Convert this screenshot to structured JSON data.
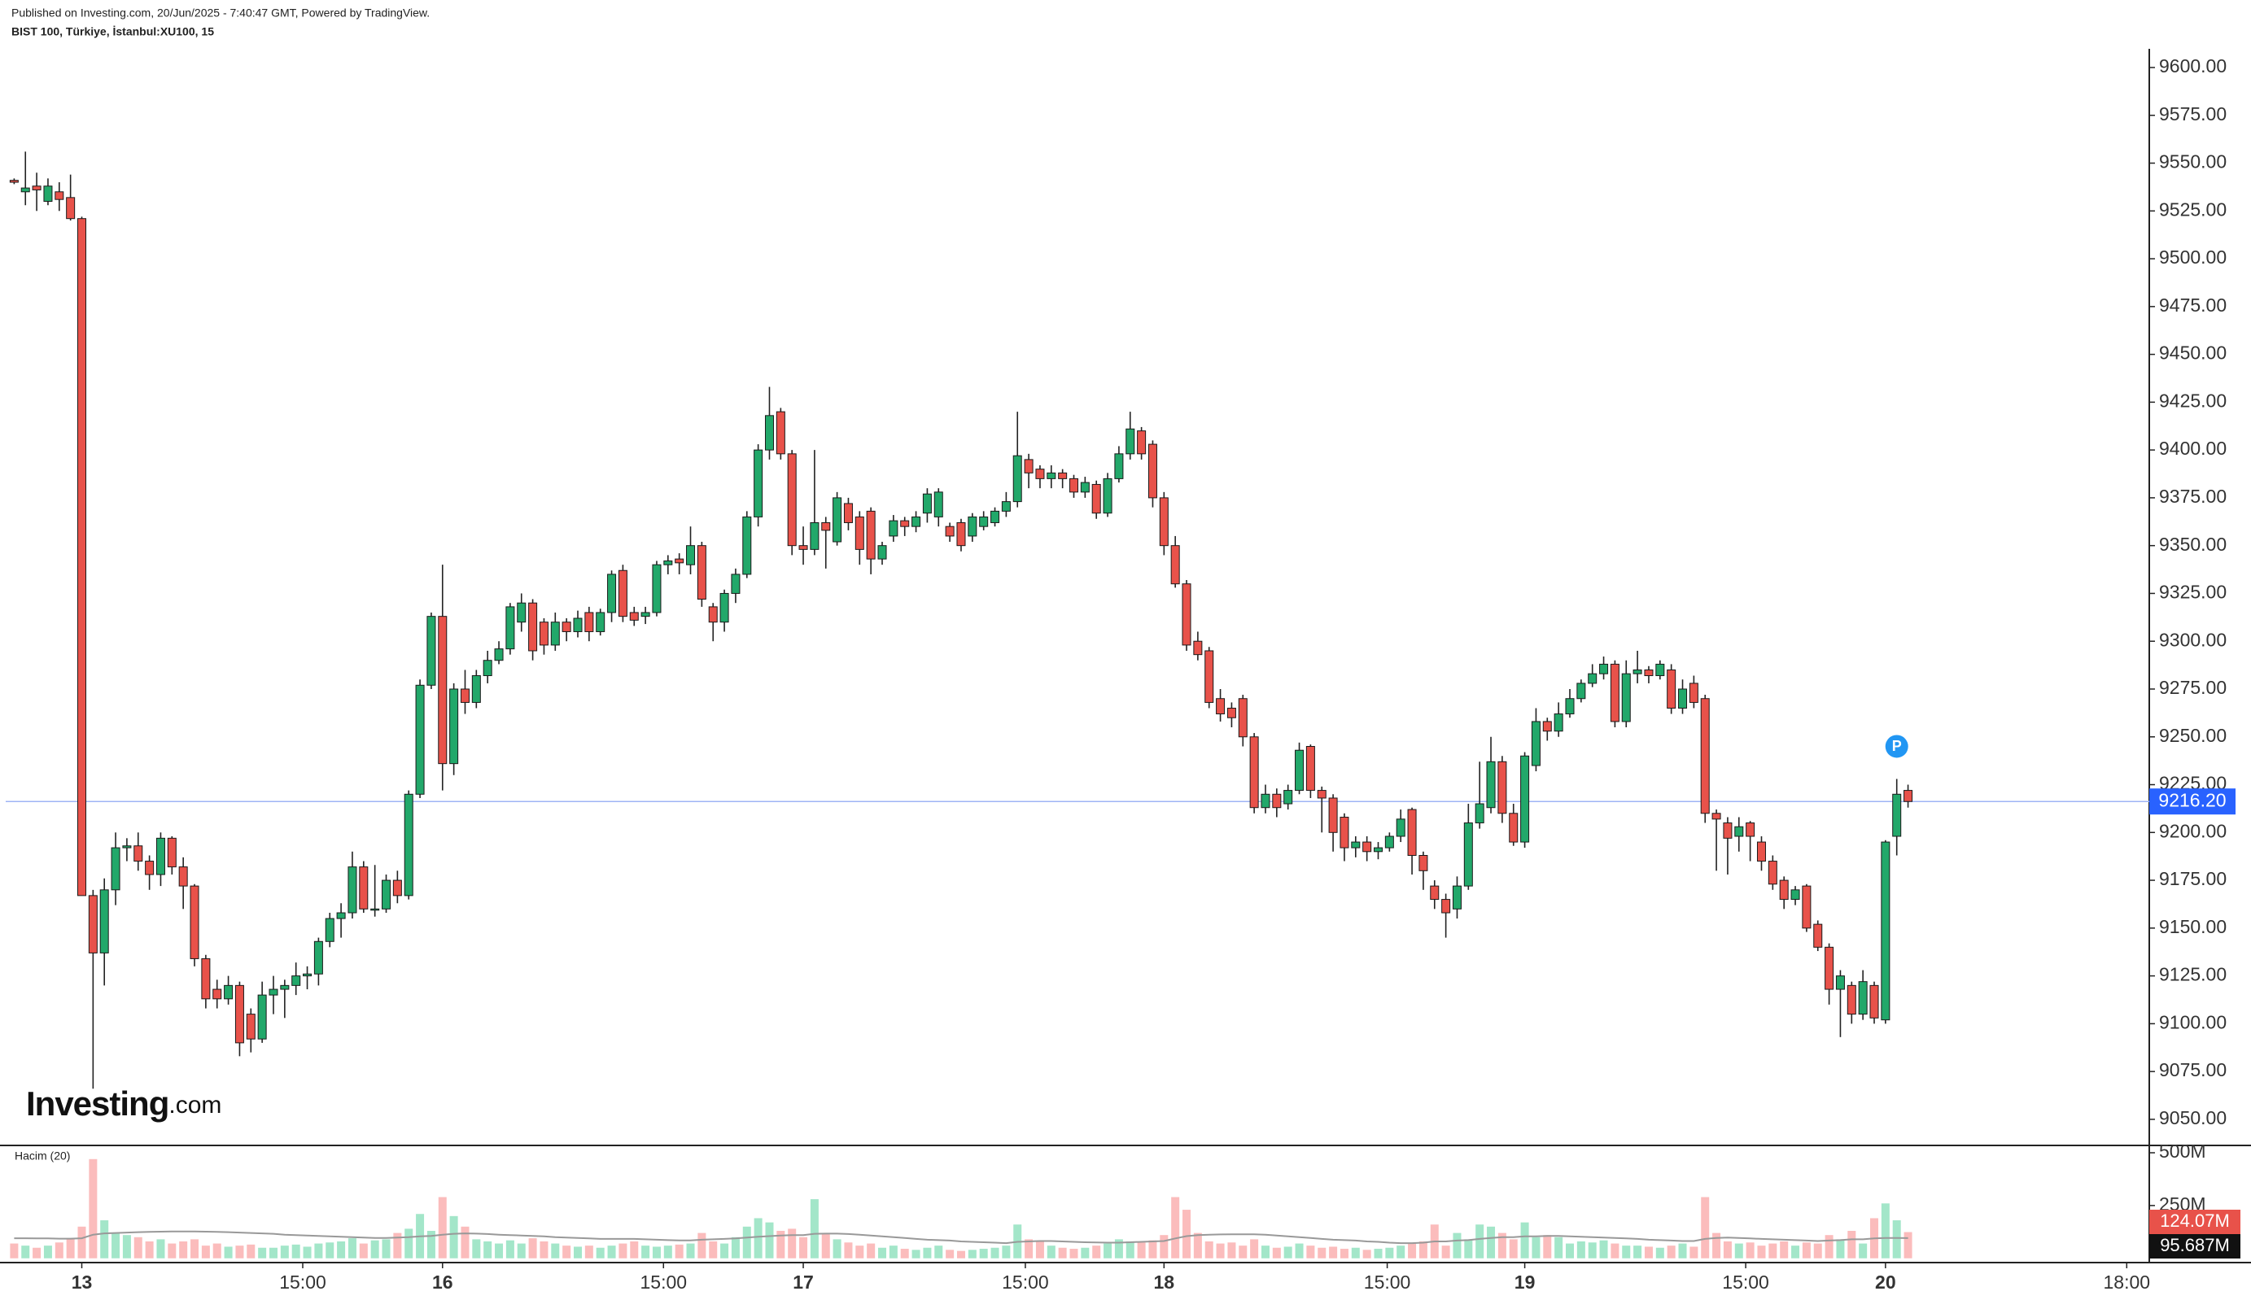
{
  "chart_data": {
    "type": "candlestick",
    "published": "Published on Investing.com, 20/Jun/2025 - 7:40:47 GMT, Powered by TradingView.",
    "symbol": "BIST 100, Türkiye, İstanbul:XU100, 15",
    "volume_title": "Hacim (20)",
    "logo_main": "Investing",
    "logo_suffix": ".com",
    "badge": "P",
    "price_label": "9216.20",
    "last_volume_label": "124.07M",
    "last_ma_label": "95.687M",
    "up_color": "#22a86a",
    "down_color": "#e8524a",
    "volume_up_color": "#a3e6c9",
    "volume_down_color": "#fbbcbc",
    "ma_color": "#999999",
    "price_line_color": "#9fb4f5",
    "price_tag_color": "#2962ff",
    "badge_color": "#2196f3",
    "grid": false,
    "xlim": [
      -0.75,
      189.4
    ],
    "xticks": [
      {
        "value": 6,
        "label": "13"
      },
      {
        "value": 25.6,
        "label": "15:00"
      },
      {
        "value": 38,
        "label": "16"
      },
      {
        "value": 57.6,
        "label": "15:00"
      },
      {
        "value": 70,
        "label": "17"
      },
      {
        "value": 89.7,
        "label": "15:00"
      },
      {
        "value": 102,
        "label": "18"
      },
      {
        "value": 121.8,
        "label": "15:00"
      },
      {
        "value": 134,
        "label": "19"
      },
      {
        "value": 153.6,
        "label": "15:00"
      },
      {
        "value": 166,
        "label": "20"
      },
      {
        "value": 187.4,
        "label": "18:00"
      }
    ],
    "ylim": [
      9037.2,
      9635.3
    ],
    "yticks": [
      {
        "value": 9050,
        "label": "9050.00"
      },
      {
        "value": 9075,
        "label": "9075.00"
      },
      {
        "value": 9100,
        "label": "9100.00"
      },
      {
        "value": 9125,
        "label": "9125.00"
      },
      {
        "value": 9150,
        "label": "9150.00"
      },
      {
        "value": 9175,
        "label": "9175.00"
      },
      {
        "value": 9200,
        "label": "9200.00"
      },
      {
        "value": 9225,
        "label": "9225.00"
      },
      {
        "value": 9250,
        "label": "9250.00"
      },
      {
        "value": 9275,
        "label": "9275.00"
      },
      {
        "value": 9300,
        "label": "9300.00"
      },
      {
        "value": 9325,
        "label": "9325.00"
      },
      {
        "value": 9350,
        "label": "9350.00"
      },
      {
        "value": 9375,
        "label": "9375.00"
      },
      {
        "value": 9400,
        "label": "9400.00"
      },
      {
        "value": 9425,
        "label": "9425.00"
      },
      {
        "value": 9450,
        "label": "9450.00"
      },
      {
        "value": 9475,
        "label": "9475.00"
      },
      {
        "value": 9500,
        "label": "9500.00"
      },
      {
        "value": 9525,
        "label": "9525.00"
      },
      {
        "value": 9550,
        "label": "9550.00"
      },
      {
        "value": 9575,
        "label": "9575.00"
      },
      {
        "value": 9600,
        "label": "9600.00"
      }
    ],
    "volume_ylim": [
      -20.3,
      527
    ],
    "volume_yticks": [
      {
        "value": 250,
        "label": "250M"
      },
      {
        "value": 500,
        "label": "500M"
      }
    ],
    "open": [
      9541,
      9535,
      9538,
      9530,
      9535,
      9532,
      9521,
      9167,
      9137,
      9170,
      9192,
      9193,
      9185,
      9178,
      9197,
      9182,
      9172,
      9134,
      9118,
      9113,
      9120,
      9105,
      9092,
      9115,
      9118,
      9120,
      9125,
      9126,
      9143,
      9155,
      9158,
      9182,
      9160,
      9160,
      9175,
      9167,
      9220,
      9277,
      9313,
      9236,
      9275,
      9268,
      9282,
      9290,
      9296,
      9310,
      9320,
      9310,
      9298,
      9310,
      9305,
      9315,
      9305,
      9315,
      9337,
      9315,
      9313,
      9315,
      9340,
      9343,
      9340,
      9350,
      9318,
      9310,
      9325,
      9335,
      9365,
      9400,
      9420,
      9398,
      9350,
      9348,
      9362,
      9352,
      9372,
      9365,
      9368,
      9343,
      9355,
      9363,
      9360,
      9367,
      9365,
      9360,
      9362,
      9355,
      9360,
      9362,
      9368,
      9373,
      9395,
      9390,
      9385,
      9388,
      9385,
      9378,
      9382,
      9367,
      9385,
      9398,
      9410,
      9403,
      9375,
      9350,
      9330,
      9300,
      9295,
      9270,
      9265,
      9270,
      9250,
      9213,
      9220,
      9215,
      9222,
      9245,
      9222,
      9218,
      9208,
      9192,
      9195,
      9190,
      9192,
      9198,
      9212,
      9188,
      9172,
      9165,
      9160,
      9172,
      9205,
      9213,
      9237,
      9210,
      9195,
      9235,
      9258,
      9253,
      9262,
      9270,
      9278,
      9283,
      9288,
      9258,
      9283,
      9285,
      9282,
      9285,
      9265,
      9278,
      9270,
      9210,
      9205,
      9198,
      9205,
      9195,
      9185,
      9175,
      9165,
      9172,
      9152,
      9140,
      9118,
      9120,
      9105,
      9120,
      9102,
      9198,
      9222
    ],
    "high": [
      9542,
      9556,
      9545,
      9542,
      9540,
      9544,
      9522,
      9170,
      9176,
      9200,
      9197,
      9200,
      9188,
      9200,
      9198,
      9187,
      9173,
      9136,
      9123,
      9125,
      9122,
      9108,
      9122,
      9125,
      9123,
      9132,
      9130,
      9145,
      9158,
      9163,
      9190,
      9185,
      9183,
      9178,
      9180,
      9222,
      9280,
      9315,
      9340,
      9278,
      9285,
      9285,
      9295,
      9300,
      9320,
      9325,
      9322,
      9312,
      9315,
      9312,
      9316,
      9318,
      9317,
      9337,
      9340,
      9318,
      9318,
      9342,
      9345,
      9346,
      9360,
      9352,
      9320,
      9327,
      9338,
      9368,
      9403,
      9433,
      9422,
      9400,
      9360,
      9400,
      9365,
      9378,
      9375,
      9368,
      9370,
      9352,
      9366,
      9365,
      9368,
      9380,
      9380,
      9362,
      9364,
      9367,
      9368,
      9370,
      9378,
      9420,
      9398,
      9392,
      9392,
      9390,
      9387,
      9386,
      9384,
      9388,
      9402,
      9420,
      9412,
      9405,
      9378,
      9355,
      9332,
      9305,
      9297,
      9275,
      9268,
      9272,
      9252,
      9225,
      9223,
      9225,
      9247,
      9246,
      9224,
      9220,
      9210,
      9198,
      9198,
      9195,
      9200,
      9212,
      9213,
      9190,
      9175,
      9168,
      9177,
      9215,
      9237,
      9250,
      9240,
      9215,
      9242,
      9265,
      9260,
      9268,
      9275,
      9280,
      9288,
      9292,
      9290,
      9290,
      9295,
      9287,
      9290,
      9288,
      9280,
      9282,
      9272,
      9212,
      9208,
      9208,
      9206,
      9198,
      9188,
      9177,
      9172,
      9173,
      9154,
      9142,
      9128,
      9122,
      9128,
      9122,
      9196,
      9228,
      9225
    ],
    "low": [
      9539,
      9528,
      9525,
      9528,
      9525,
      9520,
      9167,
      9066,
      9120,
      9162,
      9185,
      9180,
      9170,
      9172,
      9178,
      9160,
      9130,
      9108,
      9108,
      9110,
      9083,
      9085,
      9090,
      9105,
      9103,
      9115,
      9118,
      9120,
      9140,
      9145,
      9155,
      9158,
      9156,
      9158,
      9163,
      9165,
      9218,
      9275,
      9222,
      9230,
      9262,
      9265,
      9278,
      9288,
      9293,
      9305,
      9290,
      9293,
      9295,
      9300,
      9302,
      9300,
      9303,
      9310,
      9310,
      9308,
      9309,
      9313,
      9335,
      9335,
      9335,
      9318,
      9300,
      9305,
      9320,
      9333,
      9360,
      9395,
      9395,
      9345,
      9340,
      9345,
      9338,
      9350,
      9358,
      9340,
      9335,
      9340,
      9352,
      9355,
      9357,
      9362,
      9360,
      9352,
      9347,
      9352,
      9358,
      9360,
      9365,
      9370,
      9380,
      9380,
      9380,
      9380,
      9375,
      9375,
      9364,
      9365,
      9383,
      9395,
      9395,
      9370,
      9345,
      9328,
      9295,
      9290,
      9265,
      9258,
      9255,
      9245,
      9210,
      9210,
      9208,
      9212,
      9220,
      9218,
      9200,
      9190,
      9185,
      9187,
      9185,
      9186,
      9190,
      9195,
      9178,
      9170,
      9160,
      9145,
      9155,
      9170,
      9202,
      9210,
      9205,
      9193,
      9192,
      9232,
      9248,
      9250,
      9260,
      9268,
      9276,
      9280,
      9255,
      9255,
      9278,
      9278,
      9280,
      9262,
      9262,
      9265,
      9205,
      9180,
      9178,
      9190,
      9185,
      9180,
      9170,
      9160,
      9162,
      9148,
      9138,
      9110,
      9093,
      9100,
      9102,
      9100,
      9100,
      9188,
      9213
    ],
    "close": [
      9540,
      9537,
      9536,
      9538,
      9531,
      9521,
      9167,
      9137,
      9170,
      9192,
      9193,
      9185,
      9178,
      9197,
      9182,
      9172,
      9134,
      9113,
      9113,
      9120,
      9090,
      9092,
      9115,
      9118,
      9120,
      9125,
      9126,
      9143,
      9155,
      9158,
      9182,
      9160,
      9160,
      9175,
      9167,
      9220,
      9277,
      9313,
      9236,
      9275,
      9268,
      9282,
      9290,
      9296,
      9318,
      9320,
      9295,
      9298,
      9310,
      9305,
      9312,
      9305,
      9315,
      9335,
      9313,
      9311,
      9315,
      9340,
      9342,
      9341,
      9350,
      9322,
      9310,
      9325,
      9335,
      9365,
      9400,
      9418,
      9398,
      9350,
      9348,
      9362,
      9358,
      9375,
      9362,
      9348,
      9343,
      9350,
      9363,
      9360,
      9365,
      9377,
      9378,
      9355,
      9350,
      9365,
      9365,
      9368,
      9373,
      9397,
      9388,
      9385,
      9388,
      9385,
      9378,
      9383,
      9367,
      9385,
      9398,
      9411,
      9398,
      9375,
      9350,
      9330,
      9298,
      9293,
      9268,
      9262,
      9260,
      9250,
      9213,
      9220,
      9213,
      9222,
      9243,
      9222,
      9218,
      9200,
      9192,
      9195,
      9190,
      9192,
      9198,
      9207,
      9188,
      9180,
      9165,
      9158,
      9172,
      9205,
      9215,
      9237,
      9210,
      9195,
      9240,
      9258,
      9253,
      9262,
      9270,
      9278,
      9283,
      9288,
      9258,
      9283,
      9285,
      9282,
      9288,
      9265,
      9275,
      9268,
      9210,
      9207,
      9197,
      9203,
      9198,
      9185,
      9173,
      9165,
      9170,
      9150,
      9140,
      9118,
      9125,
      9105,
      9122,
      9103,
      9195,
      9220,
      9216.2
    ],
    "volume": [
      70,
      60,
      50,
      60,
      75,
      90,
      150,
      470,
      180,
      120,
      110,
      100,
      80,
      90,
      70,
      80,
      90,
      60,
      70,
      55,
      60,
      65,
      50,
      50,
      60,
      65,
      55,
      70,
      75,
      80,
      95,
      70,
      85,
      90,
      120,
      140,
      210,
      130,
      290,
      200,
      150,
      90,
      80,
      70,
      85,
      70,
      95,
      80,
      70,
      60,
      55,
      60,
      50,
      60,
      70,
      80,
      60,
      55,
      60,
      65,
      70,
      120,
      80,
      70,
      100,
      150,
      190,
      170,
      130,
      140,
      100,
      280,
      120,
      90,
      75,
      60,
      70,
      50,
      60,
      45,
      40,
      50,
      60,
      40,
      35,
      40,
      45,
      50,
      60,
      160,
      90,
      80,
      60,
      50,
      45,
      50,
      60,
      70,
      90,
      80,
      75,
      85,
      110,
      290,
      230,
      120,
      80,
      70,
      75,
      60,
      90,
      60,
      50,
      55,
      70,
      60,
      50,
      55,
      45,
      50,
      40,
      45,
      50,
      60,
      70,
      80,
      160,
      60,
      120,
      90,
      160,
      150,
      120,
      90,
      170,
      100,
      110,
      100,
      70,
      80,
      75,
      85,
      70,
      60,
      60,
      55,
      50,
      60,
      70,
      55,
      290,
      120,
      80,
      70,
      75,
      60,
      70,
      80,
      60,
      75,
      70,
      110,
      90,
      130,
      70,
      190,
      260,
      180,
      124.07
    ],
    "volume_ma": [
      95,
      95,
      94,
      94,
      93,
      93,
      95,
      112,
      118,
      120,
      122,
      124,
      125,
      126,
      127,
      127,
      127,
      126,
      125,
      124,
      122,
      120,
      118,
      116,
      112,
      110,
      108,
      106,
      104,
      102,
      100,
      98,
      96,
      96,
      98,
      100,
      104,
      106,
      112,
      116,
      118,
      117,
      115,
      112,
      110,
      108,
      106,
      104,
      100,
      98,
      96,
      94,
      92,
      92,
      92,
      92,
      90,
      88,
      86,
      85,
      85,
      88,
      90,
      92,
      94,
      98,
      102,
      105,
      108,
      110,
      110,
      116,
      117,
      117,
      115,
      112,
      108,
      104,
      100,
      96,
      92,
      88,
      86,
      84,
      80,
      78,
      76,
      74,
      72,
      78,
      80,
      82,
      82,
      80,
      78,
      76,
      75,
      74,
      74,
      76,
      78,
      80,
      82,
      94,
      105,
      110,
      112,
      113,
      114,
      114,
      114,
      112,
      108,
      104,
      100,
      96,
      92,
      88,
      86,
      84,
      80,
      78,
      74,
      72,
      72,
      74,
      80,
      80,
      84,
      86,
      92,
      96,
      100,
      100,
      104,
      104,
      106,
      106,
      104,
      102,
      100,
      98,
      96,
      94,
      92,
      88,
      86,
      84,
      82,
      82,
      92,
      96,
      98,
      96,
      94,
      92,
      90,
      88,
      86,
      84,
      82,
      84,
      86,
      90,
      90,
      94,
      96,
      96,
      95.687
    ]
  }
}
